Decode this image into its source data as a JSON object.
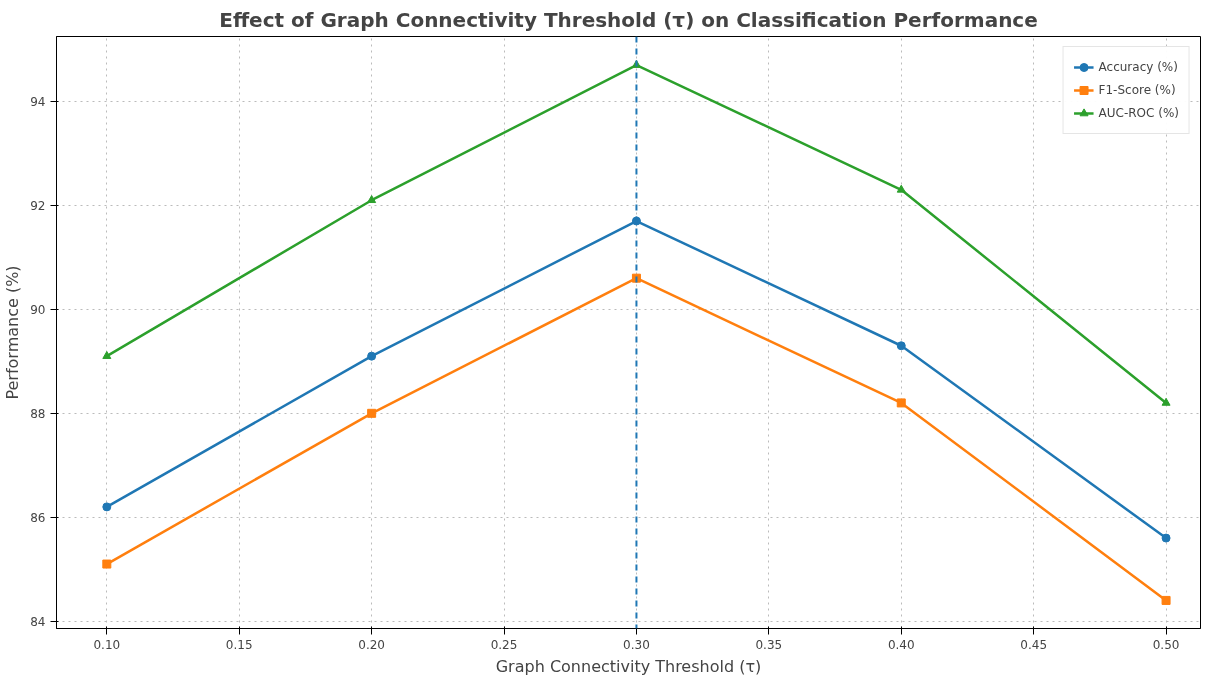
{
  "chart_data": {
    "type": "line",
    "title": "Effect of Graph Connectivity Threshold (τ) on Classification Performance",
    "xlabel": "Graph Connectivity Threshold (τ)",
    "ylabel": "Performance (%)",
    "x": [
      0.1,
      0.2,
      0.3,
      0.4,
      0.5
    ],
    "series": [
      {
        "name": "Accuracy (%)",
        "color": "#1f77b4",
        "marker": "circle",
        "values": [
          86.2,
          89.1,
          91.7,
          89.3,
          85.6
        ]
      },
      {
        "name": "F1-Score (%)",
        "color": "#ff7f0e",
        "marker": "square",
        "values": [
          85.1,
          88.0,
          90.6,
          88.2,
          84.4
        ]
      },
      {
        "name": "AUC-ROC (%)",
        "color": "#2ca02c",
        "marker": "triangle",
        "values": [
          89.1,
          92.1,
          94.7,
          92.3,
          88.2
        ]
      }
    ],
    "xlim": [
      0.081,
      0.513
    ],
    "ylim": [
      83.86,
      95.25
    ],
    "xticks": [
      {
        "value": 0.1,
        "label": "0.10"
      },
      {
        "value": 0.15,
        "label": "0.15"
      },
      {
        "value": 0.2,
        "label": "0.20"
      },
      {
        "value": 0.25,
        "label": "0.25"
      },
      {
        "value": 0.3,
        "label": "0.30"
      },
      {
        "value": 0.35,
        "label": "0.35"
      },
      {
        "value": 0.4,
        "label": "0.40"
      },
      {
        "value": 0.45,
        "label": "0.45"
      },
      {
        "value": 0.5,
        "label": "0.50"
      }
    ],
    "yticks": [
      84,
      86,
      88,
      90,
      92,
      94
    ],
    "ref_lines": [
      {
        "axis": "x",
        "value": 0.3,
        "color": "#1f77b4",
        "line_style": "dashed"
      }
    ],
    "grid": true,
    "legend": "top right",
    "line_style": "solid"
  }
}
